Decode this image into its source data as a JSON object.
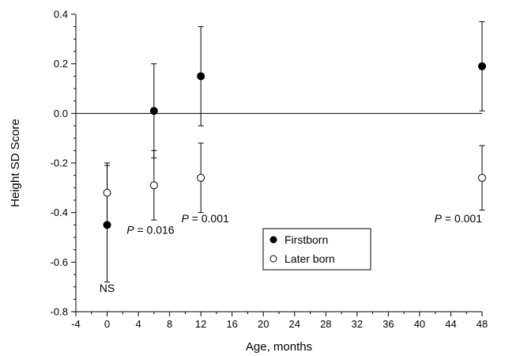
{
  "chart_data": {
    "type": "scatter",
    "xlabel": "Age, months",
    "ylabel": "Height SD Score",
    "xlim": [
      -4,
      48
    ],
    "ylim": [
      -0.8,
      0.4
    ],
    "x_ticks": [
      -4,
      0,
      4,
      8,
      12,
      16,
      20,
      24,
      28,
      32,
      36,
      40,
      44,
      48
    ],
    "x_tick_labels": [
      "-4",
      "0",
      "4",
      "8",
      "12",
      "16",
      "20",
      "24",
      "28",
      "32",
      "36",
      "40",
      "44",
      "48"
    ],
    "y_ticks": [
      -0.8,
      -0.6,
      -0.4,
      -0.2,
      0.0,
      0.2,
      0.4
    ],
    "y_tick_labels": [
      "-0.8",
      "-0.6",
      "-0.4",
      "-0.2",
      "0.0",
      "0.2",
      "0.4"
    ],
    "reference_line_y": 0,
    "grid": false,
    "legend_position": "bottom-center",
    "series": [
      {
        "name": "Firstborn",
        "marker": "filled-circle",
        "points": [
          {
            "x": 0,
            "y": -0.45,
            "lo": -0.68,
            "hi": -0.21
          },
          {
            "x": 6,
            "y": 0.01,
            "lo": -0.18,
            "hi": 0.2
          },
          {
            "x": 12,
            "y": 0.15,
            "lo": -0.05,
            "hi": 0.35
          },
          {
            "x": 48,
            "y": 0.19,
            "lo": 0.01,
            "hi": 0.37
          }
        ]
      },
      {
        "name": "Later born",
        "marker": "open-circle",
        "points": [
          {
            "x": 0,
            "y": -0.32,
            "lo": -0.44,
            "hi": -0.2
          },
          {
            "x": 6,
            "y": -0.29,
            "lo": -0.43,
            "hi": -0.15
          },
          {
            "x": 12,
            "y": -0.26,
            "lo": -0.4,
            "hi": -0.12
          },
          {
            "x": 48,
            "y": -0.26,
            "lo": -0.39,
            "hi": -0.13
          }
        ]
      }
    ],
    "annotations": [
      {
        "text": "NS",
        "x": 0,
        "y": -0.72,
        "anchor": "middle"
      },
      {
        "prefix": "P",
        "text": " = 0.016",
        "x": 2.5,
        "y": -0.485,
        "anchor": "start"
      },
      {
        "prefix": "P",
        "text": " = 0.001",
        "x": 9.5,
        "y": -0.44,
        "anchor": "start"
      },
      {
        "prefix": "P",
        "text": " = 0.001",
        "x": 48,
        "y": -0.44,
        "anchor": "end"
      }
    ]
  }
}
